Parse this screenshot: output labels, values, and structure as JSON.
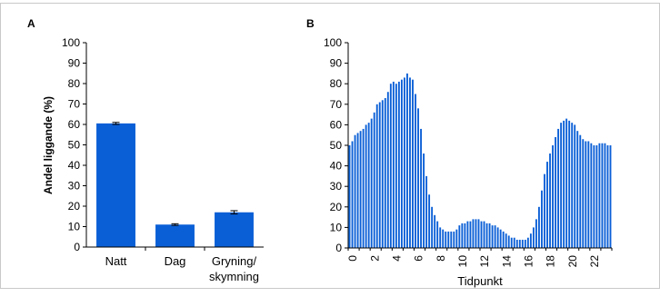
{
  "colors": {
    "bar": "#0a5fd6",
    "axis": "#000000",
    "frame": "#c9c9c9"
  },
  "chart_data": [
    {
      "panel_label": "A",
      "type": "bar",
      "ylabel": "Andel liggande (%)",
      "ylim": [
        0,
        100
      ],
      "yticks": [
        0,
        10,
        20,
        30,
        40,
        50,
        60,
        70,
        80,
        90,
        100
      ],
      "categories": [
        {
          "line1": "Natt",
          "line2": ""
        },
        {
          "line1": "Dag",
          "line2": ""
        },
        {
          "line1": "Gryning/",
          "line2": "skymning"
        }
      ],
      "values": [
        60.5,
        11,
        17
      ],
      "errors": [
        0.5,
        0.4,
        0.8
      ],
      "grid": false
    },
    {
      "panel_label": "B",
      "type": "bar",
      "xlabel": "Tidpunkt",
      "ylim": [
        0,
        100
      ],
      "yticks": [
        0,
        10,
        20,
        30,
        40,
        50,
        60,
        70,
        80,
        90,
        100
      ],
      "xlim": [
        0,
        24
      ],
      "xticks": [
        0,
        2,
        4,
        6,
        8,
        10,
        12,
        14,
        16,
        18,
        20,
        22
      ],
      "bars_per_hour": 4,
      "values": [
        50,
        52,
        55,
        56,
        57,
        58,
        60,
        61,
        63,
        66,
        70,
        71,
        72,
        73,
        76,
        80,
        81,
        80,
        81,
        82,
        83,
        85,
        83,
        82,
        75,
        68,
        58,
        46,
        35,
        26,
        20,
        16,
        13,
        10,
        9,
        8,
        8,
        8,
        8,
        9,
        11,
        12,
        12,
        13,
        13,
        14,
        14,
        14,
        13,
        13,
        12,
        12,
        11,
        11,
        10,
        9,
        8,
        7,
        6,
        5,
        5,
        4,
        4,
        4,
        4,
        5,
        7,
        10,
        14,
        20,
        28,
        36,
        42,
        46,
        50,
        54,
        58,
        61,
        62,
        63,
        62,
        61,
        60,
        57,
        55,
        53,
        52,
        52,
        51,
        50,
        50,
        51,
        51,
        51,
        50,
        50
      ],
      "grid": false
    }
  ]
}
